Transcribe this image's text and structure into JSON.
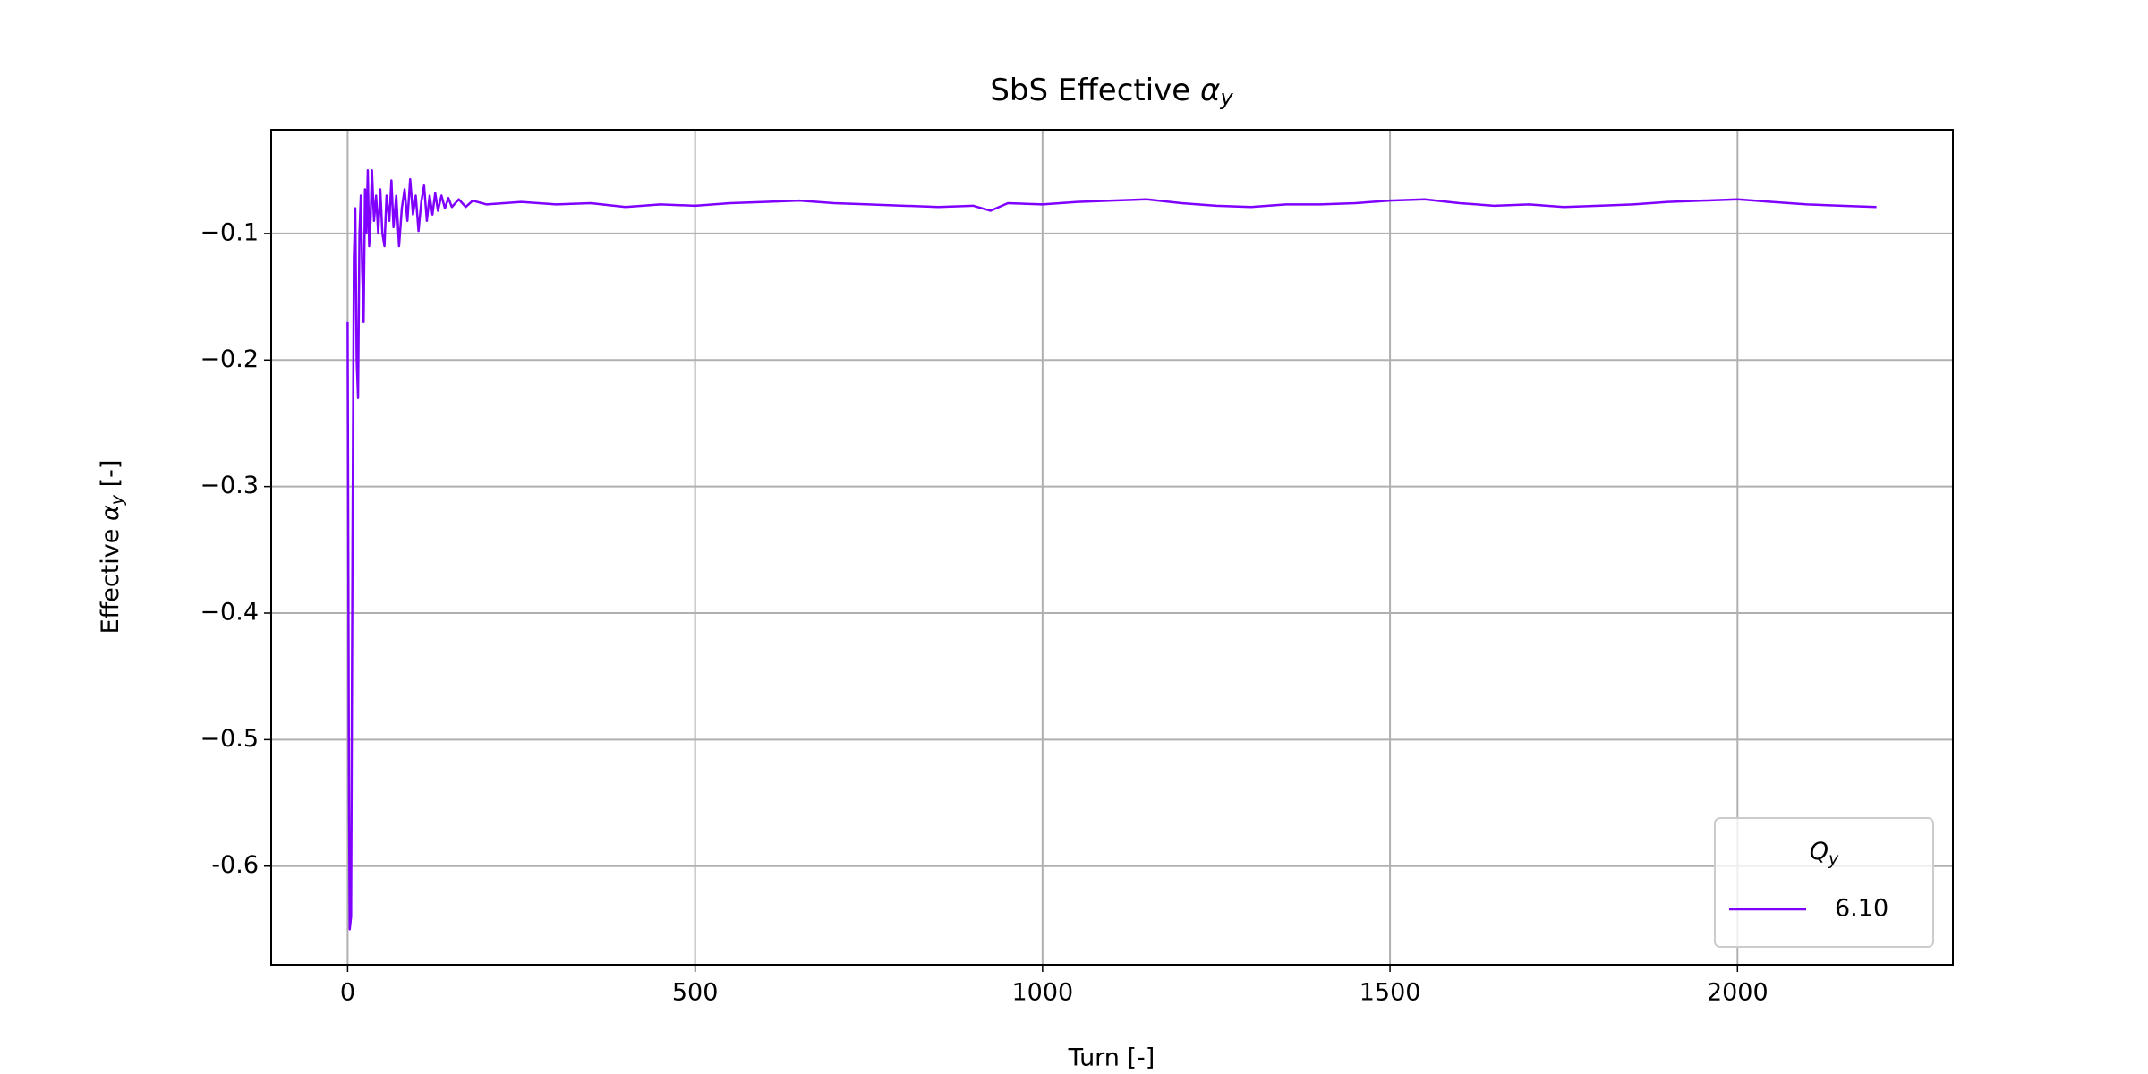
{
  "chart_data": {
    "type": "line",
    "title": {
      "text": "SbS Effective",
      "symbol": "α",
      "subscript": "y"
    },
    "xlabel": "Turn [-]",
    "ylabel": {
      "text": "Effective",
      "symbol": "α",
      "subscript": "y",
      "unit": "[-]"
    },
    "legend_title": {
      "symbol": "Q",
      "subscript": "y"
    },
    "legend_position": "lower right",
    "grid": true,
    "xlim": [
      -110,
      2310
    ],
    "ylim": [
      -0.678,
      -0.018
    ],
    "xticks": [
      0,
      500,
      1000,
      1500,
      2000
    ],
    "yticks": [
      {
        "value": -0.1,
        "label": "−0.1"
      },
      {
        "value": -0.2,
        "label": "−0.2"
      },
      {
        "value": -0.3,
        "label": "−0.3"
      },
      {
        "value": -0.4,
        "label": "−0.4"
      },
      {
        "value": -0.5,
        "label": "−0.5"
      },
      {
        "value": -0.6,
        "label": "-0.6"
      }
    ],
    "x": [
      0,
      2,
      3,
      5,
      7,
      9,
      11,
      13,
      15,
      17,
      19,
      21,
      23,
      25,
      27,
      29,
      31,
      33,
      35,
      38,
      41,
      44,
      47,
      50,
      53,
      56,
      60,
      63,
      66,
      70,
      74,
      78,
      82,
      86,
      90,
      94,
      98,
      102,
      106,
      110,
      114,
      118,
      122,
      126,
      130,
      135,
      140,
      145,
      150,
      160,
      170,
      180,
      200,
      250,
      300,
      350,
      400,
      450,
      500,
      550,
      600,
      650,
      700,
      750,
      800,
      850,
      900,
      925,
      950,
      1000,
      1050,
      1100,
      1150,
      1200,
      1250,
      1300,
      1350,
      1400,
      1450,
      1500,
      1550,
      1600,
      1650,
      1700,
      1750,
      1800,
      1850,
      1900,
      1950,
      2000,
      2050,
      2100,
      2150,
      2200
    ],
    "series": [
      {
        "name": "6.10",
        "color": "#7f00ff",
        "values": [
          -0.17,
          -0.55,
          -0.65,
          -0.64,
          -0.35,
          -0.12,
          -0.08,
          -0.2,
          -0.23,
          -0.1,
          -0.07,
          -0.13,
          -0.17,
          -0.065,
          -0.1,
          -0.05,
          -0.11,
          -0.09,
          -0.05,
          -0.09,
          -0.07,
          -0.1,
          -0.065,
          -0.1,
          -0.11,
          -0.07,
          -0.09,
          -0.058,
          -0.095,
          -0.07,
          -0.11,
          -0.08,
          -0.065,
          -0.09,
          -0.057,
          -0.085,
          -0.07,
          -0.098,
          -0.075,
          -0.062,
          -0.09,
          -0.07,
          -0.085,
          -0.068,
          -0.082,
          -0.07,
          -0.08,
          -0.072,
          -0.079,
          -0.073,
          -0.079,
          -0.074,
          -0.077,
          -0.075,
          -0.077,
          -0.076,
          -0.079,
          -0.077,
          -0.078,
          -0.076,
          -0.075,
          -0.074,
          -0.076,
          -0.077,
          -0.078,
          -0.079,
          -0.078,
          -0.082,
          -0.076,
          -0.077,
          -0.075,
          -0.074,
          -0.073,
          -0.076,
          -0.078,
          -0.079,
          -0.077,
          -0.077,
          -0.076,
          -0.074,
          -0.073,
          -0.076,
          -0.078,
          -0.077,
          -0.079,
          -0.078,
          -0.077,
          -0.075,
          -0.074,
          -0.073,
          -0.075,
          -0.077,
          -0.078,
          -0.079
        ]
      }
    ]
  }
}
